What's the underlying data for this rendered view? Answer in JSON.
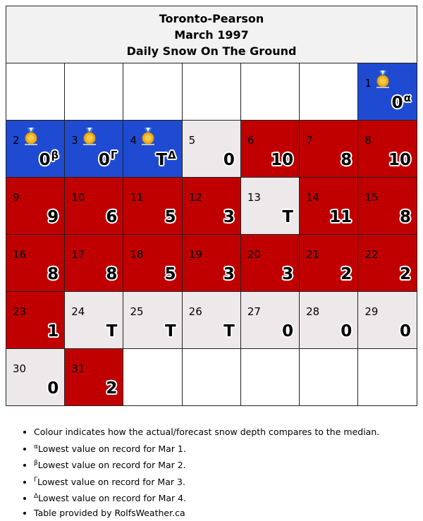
{
  "header": {
    "station": "Toronto-Pearson",
    "period": "March 1997",
    "title": "Daily Snow On The Ground"
  },
  "colors": {
    "record_low": "#1e4bd2",
    "below_median": "#c00000",
    "near_median": "#ede9ea"
  },
  "calendar": {
    "leading_blanks": 6,
    "days": [
      {
        "day": "1",
        "value": "0",
        "sup": "α",
        "medal": "medal-icon",
        "status": "record_low"
      },
      {
        "day": "2",
        "value": "0",
        "sup": "β",
        "medal": "medal-icon",
        "status": "record_low"
      },
      {
        "day": "3",
        "value": "0",
        "sup": "Γ",
        "medal": "medal-icon",
        "status": "record_low"
      },
      {
        "day": "4",
        "value": "T",
        "sup": "Δ",
        "medal": "medal-icon",
        "status": "record_low"
      },
      {
        "day": "5",
        "value": "0",
        "status": "near_median"
      },
      {
        "day": "6",
        "value": "10",
        "status": "below_median"
      },
      {
        "day": "7",
        "value": "8",
        "status": "below_median"
      },
      {
        "day": "8",
        "value": "10",
        "status": "below_median"
      },
      {
        "day": "9",
        "value": "9",
        "status": "below_median"
      },
      {
        "day": "10",
        "value": "6",
        "status": "below_median"
      },
      {
        "day": "11",
        "value": "5",
        "status": "below_median"
      },
      {
        "day": "12",
        "value": "3",
        "status": "below_median"
      },
      {
        "day": "13",
        "value": "T",
        "status": "near_median"
      },
      {
        "day": "14",
        "value": "11",
        "status": "below_median"
      },
      {
        "day": "15",
        "value": "8",
        "status": "below_median"
      },
      {
        "day": "16",
        "value": "8",
        "status": "below_median"
      },
      {
        "day": "17",
        "value": "8",
        "status": "below_median"
      },
      {
        "day": "18",
        "value": "5",
        "status": "below_median"
      },
      {
        "day": "19",
        "value": "3",
        "status": "below_median"
      },
      {
        "day": "20",
        "value": "3",
        "status": "below_median"
      },
      {
        "day": "21",
        "value": "2",
        "status": "below_median"
      },
      {
        "day": "22",
        "value": "2",
        "status": "below_median"
      },
      {
        "day": "23",
        "value": "1",
        "status": "below_median"
      },
      {
        "day": "24",
        "value": "T",
        "status": "near_median"
      },
      {
        "day": "25",
        "value": "T",
        "status": "near_median"
      },
      {
        "day": "26",
        "value": "T",
        "status": "near_median"
      },
      {
        "day": "27",
        "value": "0",
        "status": "near_median"
      },
      {
        "day": "28",
        "value": "0",
        "status": "near_median"
      },
      {
        "day": "29",
        "value": "0",
        "status": "near_median"
      },
      {
        "day": "30",
        "value": "0",
        "status": "near_median"
      },
      {
        "day": "31",
        "value": "2",
        "status": "below_median"
      }
    ]
  },
  "notes": [
    {
      "sup": "",
      "text": "Colour indicates how the actual/forecast snow depth compares to the median."
    },
    {
      "sup": "α",
      "text": "Lowest value on record for Mar 1."
    },
    {
      "sup": "β",
      "text": "Lowest value on record for Mar 2."
    },
    {
      "sup": "Γ",
      "text": "Lowest value on record for Mar 3."
    },
    {
      "sup": "Δ",
      "text": "Lowest value on record for Mar 4."
    },
    {
      "sup": "",
      "text": "Table provided by RolfsWeather.ca"
    }
  ]
}
